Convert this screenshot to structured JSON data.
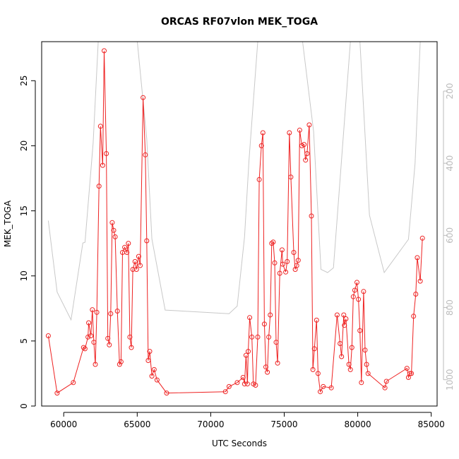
{
  "chart_data": {
    "type": "line",
    "title": "ORCAS RF07vlon MEK_TOGA",
    "xlabel": "UTC Seconds",
    "ylabel": "MEK_TOGA",
    "xlim": [
      58500,
      85400
    ],
    "ylim": [
      0,
      28
    ],
    "x_ticks": [
      60000,
      65000,
      70000,
      75000,
      80000,
      85000
    ],
    "y_ticks": [
      0,
      5,
      10,
      15,
      20,
      25
    ],
    "y2_range_top": 63,
    "y2_range_bottom": 1073,
    "y2_ticks": [
      200,
      400,
      600,
      800,
      1000
    ],
    "colors": {
      "series": "#ee2222",
      "secondary": "#c8c8c8",
      "frame": "#000000"
    },
    "series": [
      {
        "marker": "open-circle",
        "color": "#ee2222",
        "points": [
          [
            58950,
            5.4
          ],
          [
            59550,
            1.0
          ],
          [
            60650,
            1.8
          ],
          [
            61350,
            4.5
          ],
          [
            61450,
            4.4
          ],
          [
            61650,
            5.3
          ],
          [
            61700,
            6.4
          ],
          [
            61850,
            5.4
          ],
          [
            61950,
            7.4
          ],
          [
            62050,
            4.9
          ],
          [
            62150,
            3.2
          ],
          [
            62250,
            7.2
          ],
          [
            62400,
            16.9
          ],
          [
            62500,
            21.5
          ],
          [
            62650,
            18.5
          ],
          [
            62750,
            27.3
          ],
          [
            62900,
            19.4
          ],
          [
            63000,
            5.2
          ],
          [
            63100,
            4.7
          ],
          [
            63200,
            7.1
          ],
          [
            63300,
            14.1
          ],
          [
            63400,
            13.5
          ],
          [
            63500,
            13.0
          ],
          [
            63650,
            7.3
          ],
          [
            63800,
            3.2
          ],
          [
            63900,
            3.4
          ],
          [
            64000,
            11.8
          ],
          [
            64150,
            12.2
          ],
          [
            64300,
            11.8
          ],
          [
            64400,
            12.5
          ],
          [
            64500,
            5.3
          ],
          [
            64600,
            4.5
          ],
          [
            64700,
            10.5
          ],
          [
            64850,
            11.1
          ],
          [
            64950,
            10.5
          ],
          [
            65100,
            11.5
          ],
          [
            65200,
            10.8
          ],
          [
            65400,
            23.7
          ],
          [
            65550,
            19.3
          ],
          [
            65650,
            12.7
          ],
          [
            65750,
            3.5
          ],
          [
            65850,
            4.2
          ],
          [
            66000,
            2.3
          ],
          [
            66150,
            2.8
          ],
          [
            66350,
            2.0
          ],
          [
            67000,
            1.0
          ],
          [
            71000,
            1.1
          ],
          [
            71250,
            1.5
          ],
          [
            71800,
            1.8
          ],
          [
            72200,
            2.2
          ],
          [
            72300,
            1.7
          ],
          [
            72400,
            3.9
          ],
          [
            72500,
            1.7
          ],
          [
            72550,
            4.2
          ],
          [
            72650,
            6.8
          ],
          [
            72800,
            5.3
          ],
          [
            72900,
            1.7
          ],
          [
            73050,
            1.6
          ],
          [
            73200,
            5.3
          ],
          [
            73300,
            17.4
          ],
          [
            73450,
            20.0
          ],
          [
            73550,
            21.0
          ],
          [
            73650,
            6.3
          ],
          [
            73750,
            3.0
          ],
          [
            73850,
            2.6
          ],
          [
            73950,
            5.3
          ],
          [
            74050,
            7.0
          ],
          [
            74150,
            12.5
          ],
          [
            74250,
            12.6
          ],
          [
            74350,
            11.0
          ],
          [
            74450,
            4.9
          ],
          [
            74550,
            3.3
          ],
          [
            74700,
            10.2
          ],
          [
            74850,
            12.0
          ],
          [
            74900,
            10.9
          ],
          [
            75100,
            10.3
          ],
          [
            75200,
            11.1
          ],
          [
            75350,
            21.0
          ],
          [
            75450,
            17.6
          ],
          [
            75650,
            11.8
          ],
          [
            75750,
            10.5
          ],
          [
            75850,
            10.8
          ],
          [
            75950,
            11.2
          ],
          [
            76050,
            21.2
          ],
          [
            76200,
            20.0
          ],
          [
            76350,
            20.1
          ],
          [
            76450,
            18.9
          ],
          [
            76550,
            19.4
          ],
          [
            76700,
            21.6
          ],
          [
            76850,
            14.6
          ],
          [
            76950,
            2.8
          ],
          [
            77050,
            4.4
          ],
          [
            77200,
            6.6
          ],
          [
            77300,
            2.5
          ],
          [
            77450,
            1.1
          ],
          [
            77650,
            1.5
          ],
          [
            78200,
            1.4
          ],
          [
            78600,
            7.0
          ],
          [
            78800,
            4.8
          ],
          [
            78900,
            3.8
          ],
          [
            79050,
            7.0
          ],
          [
            79100,
            6.2
          ],
          [
            79200,
            6.7
          ],
          [
            79400,
            3.2
          ],
          [
            79500,
            2.8
          ],
          [
            79600,
            4.5
          ],
          [
            79700,
            8.4
          ],
          [
            79800,
            8.9
          ],
          [
            79950,
            9.5
          ],
          [
            80050,
            8.2
          ],
          [
            80150,
            5.8
          ],
          [
            80250,
            1.8
          ],
          [
            80400,
            8.8
          ],
          [
            80500,
            4.3
          ],
          [
            80600,
            3.2
          ],
          [
            80700,
            2.5
          ],
          [
            81850,
            1.4
          ],
          [
            81950,
            1.9
          ],
          [
            83350,
            2.9
          ],
          [
            83450,
            2.2
          ],
          [
            83550,
            2.5
          ],
          [
            83650,
            2.5
          ],
          [
            83800,
            6.9
          ],
          [
            83950,
            8.6
          ],
          [
            84050,
            11.4
          ],
          [
            84250,
            9.6
          ],
          [
            84400,
            12.9
          ]
        ]
      },
      {
        "axis": "secondary",
        "marker": "none",
        "color": "#c8c8c8",
        "points": [
          [
            58950,
            559
          ],
          [
            59550,
            757
          ],
          [
            60500,
            834
          ],
          [
            61300,
            621
          ],
          [
            61450,
            619
          ],
          [
            62000,
            344
          ],
          [
            62350,
            63
          ],
          [
            63300,
            63
          ],
          [
            64100,
            60
          ],
          [
            65000,
            60
          ],
          [
            65650,
            332
          ],
          [
            66000,
            610
          ],
          [
            66900,
            807
          ],
          [
            71250,
            817
          ],
          [
            71800,
            796
          ],
          [
            72300,
            604
          ],
          [
            72600,
            395
          ],
          [
            73200,
            63
          ],
          [
            73700,
            63
          ],
          [
            75200,
            63
          ],
          [
            76250,
            63
          ],
          [
            77000,
            312
          ],
          [
            77500,
            694
          ],
          [
            77950,
            703
          ],
          [
            78350,
            690
          ],
          [
            79500,
            63
          ],
          [
            80150,
            63
          ],
          [
            80800,
            544
          ],
          [
            81800,
            703
          ],
          [
            83450,
            611
          ],
          [
            83900,
            400
          ],
          [
            84250,
            63
          ]
        ]
      }
    ]
  }
}
